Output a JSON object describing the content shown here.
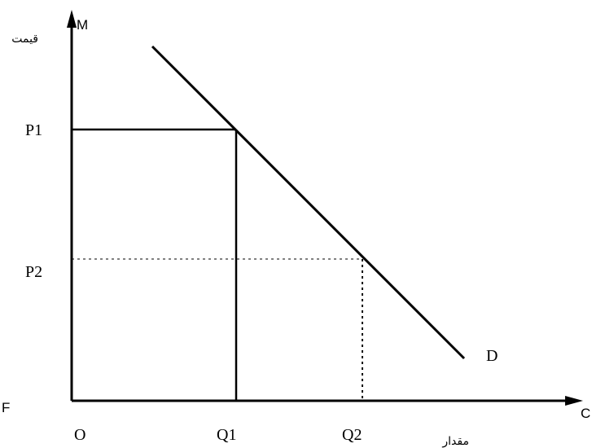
{
  "diagram": {
    "corner_labels": {
      "top": "M",
      "bottom_left": "F",
      "bottom_right": "C"
    },
    "axes": {
      "y_label": "قیمت",
      "x_label": "مقدار"
    },
    "ticks": {
      "origin": "O",
      "price_high": "P1",
      "price_low": "P2",
      "quantity_low": "Q1",
      "quantity_high": "Q2"
    },
    "curve_label": "D"
  }
}
